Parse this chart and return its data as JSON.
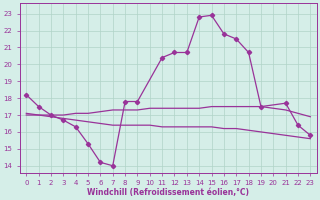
{
  "xlabel": "Windchill (Refroidissement éolien,°C)",
  "background_color": "#d5eee8",
  "grid_color": "#b0d4c8",
  "line_color": "#993399",
  "spine_color": "#993399",
  "tick_color": "#993399",
  "label_color": "#993399",
  "yticks": [
    14,
    15,
    16,
    17,
    18,
    19,
    20,
    21,
    22,
    23
  ],
  "ylim_min": 13.6,
  "ylim_max": 23.6,
  "xlim_min": -0.5,
  "xlim_max": 23.5,
  "line1_x": [
    0,
    1,
    2,
    3,
    4,
    5,
    6,
    7,
    8,
    9,
    10,
    11,
    12,
    13,
    14,
    15,
    16,
    17,
    18,
    19,
    20,
    21,
    22,
    23
  ],
  "line1_y": [
    17.0,
    17.0,
    17.0,
    17.0,
    17.1,
    17.1,
    17.2,
    17.3,
    17.3,
    17.3,
    17.4,
    17.4,
    17.4,
    17.4,
    17.4,
    17.5,
    17.5,
    17.5,
    17.5,
    17.5,
    17.4,
    17.3,
    17.1,
    16.9
  ],
  "line2_x": [
    0,
    1,
    2,
    3,
    4,
    5,
    6,
    7,
    8,
    9,
    10,
    11,
    12,
    13,
    14,
    15,
    16,
    17,
    18,
    19,
    20,
    21,
    22,
    23
  ],
  "line2_y": [
    17.1,
    17.0,
    16.9,
    16.8,
    16.7,
    16.6,
    16.5,
    16.4,
    16.4,
    16.4,
    16.4,
    16.3,
    16.3,
    16.3,
    16.3,
    16.3,
    16.2,
    16.2,
    16.1,
    16.0,
    15.9,
    15.8,
    15.7,
    15.6
  ],
  "line3_x": [
    0,
    1,
    2,
    3,
    4,
    5,
    6,
    7,
    8,
    9,
    11,
    12,
    13,
    14,
    15,
    16,
    17,
    18,
    19,
    21,
    22,
    23
  ],
  "line3_y": [
    18.2,
    17.5,
    17.0,
    16.7,
    16.3,
    15.3,
    14.2,
    14.0,
    17.8,
    17.8,
    20.4,
    20.7,
    20.7,
    22.8,
    22.9,
    21.8,
    21.5,
    20.7,
    17.5,
    17.7,
    16.4,
    15.8
  ],
  "xlabel_fontsize": 5.5,
  "tick_fontsize": 5.0
}
